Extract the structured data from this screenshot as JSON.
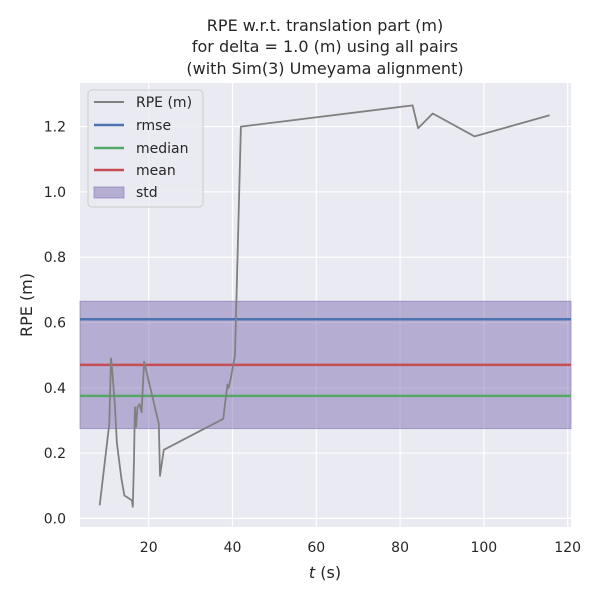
{
  "chart_data": {
    "type": "line",
    "title_lines": [
      "RPE w.r.t. translation part (m)",
      "for delta = 1.0 (m) using all pairs",
      "(with Sim(3) Umeyama alignment)"
    ],
    "xlabel_var": "t",
    "xlabel_unit": " (s)",
    "ylabel": "RPE (m)",
    "xlim": [
      3.6,
      120.8
    ],
    "ylim": [
      -0.0265,
      1.3335
    ],
    "xticks": [
      20,
      40,
      60,
      80,
      100,
      120
    ],
    "yticks": [
      0.0,
      0.2,
      0.4,
      0.6,
      0.8,
      1.0,
      1.2
    ],
    "ytick_labels": [
      "0.0",
      "0.2",
      "0.4",
      "0.6",
      "0.8",
      "1.0",
      "1.2"
    ],
    "grid": true,
    "legend_position": "upper left",
    "series": [
      {
        "name": "RPE (m)",
        "color": "#808080",
        "x": [
          8.3,
          10.6,
          11.0,
          11.3,
          11.9,
          12.4,
          13.5,
          14.2,
          16.0,
          16.2,
          16.5,
          16.7,
          17.0,
          17.3,
          17.8,
          18.3,
          18.9,
          22.4,
          22.7,
          23.6,
          37.8,
          38.2,
          38.8,
          39.1,
          39.6,
          40.6,
          42.0,
          83.0,
          84.3,
          87.8,
          97.8,
          115.7
        ],
        "y": [
          0.04,
          0.29,
          0.49,
          0.45,
          0.35,
          0.23,
          0.12,
          0.07,
          0.055,
          0.035,
          0.18,
          0.34,
          0.28,
          0.34,
          0.35,
          0.325,
          0.48,
          0.29,
          0.13,
          0.21,
          0.305,
          0.35,
          0.41,
          0.4,
          0.43,
          0.5,
          1.2,
          1.265,
          1.195,
          1.24,
          1.17,
          1.235
        ]
      }
    ],
    "stats": {
      "rmse": {
        "name": "rmse",
        "value": 0.61,
        "color": "#4c72b0"
      },
      "median": {
        "name": "median",
        "value": 0.375,
        "color": "#55a868"
      },
      "mean": {
        "name": "mean",
        "value": 0.47,
        "color": "#c44e52"
      },
      "std": {
        "name": "std",
        "low": 0.275,
        "high": 0.665,
        "color": "#8172b2"
      }
    },
    "colors": {
      "background": "#eaeaf2",
      "grid": "#ffffff"
    }
  }
}
